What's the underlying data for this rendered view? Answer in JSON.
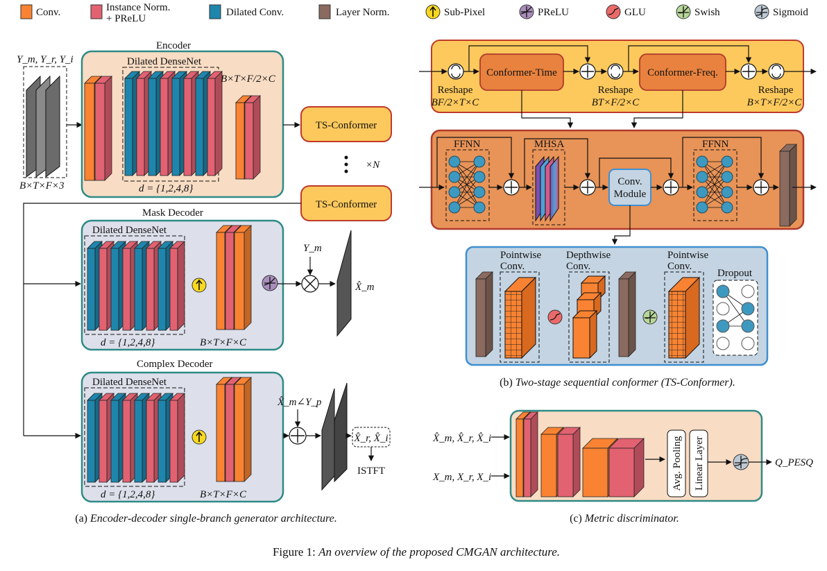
{
  "legend": [
    {
      "name": "conv",
      "label": "Conv.",
      "color": "#f98332"
    },
    {
      "name": "instance-norm-prelu",
      "label_lines": [
        "Instance Norm.",
        "+ PReLU"
      ],
      "color": "#e26272"
    },
    {
      "name": "dilated-conv",
      "label": "Dilated Conv.",
      "color": "#1e86ad"
    },
    {
      "name": "layer-norm",
      "label": "Layer Norm.",
      "color": "#8b6a5f"
    },
    {
      "name": "sub-pixel",
      "label": "Sub-Pixel",
      "color": "#f8d81e",
      "icon": "up-arrow-icon"
    },
    {
      "name": "prelu",
      "label": "PReLU",
      "color": "#a98ebc",
      "icon": "prelu-curve-icon"
    },
    {
      "name": "glu",
      "label": "GLU",
      "color": "#ea6a6a",
      "icon": "glu-curve-icon"
    },
    {
      "name": "swish",
      "label": "Swish",
      "color": "#b8d79a",
      "icon": "swish-curve-icon"
    },
    {
      "name": "sigmoid",
      "label": "Sigmoid",
      "color": "#bcc9d4",
      "icon": "sigmoid-curve-icon"
    }
  ],
  "colors": {
    "encoder_bg": "#f8dcc4",
    "decoder_bg": "#dde0ea",
    "teal_border": "#2e8a86",
    "conformer_fill": "#fdc95c",
    "conformer_border": "#c0392b",
    "inner_block": "#e8823e",
    "block_bg": "#e89357",
    "conv_module_bg": "#c4d4e2",
    "conv_module_border": "#3f8fd0"
  },
  "panel_a": {
    "input_label": "Y_m, Y_r, Y_i",
    "input_dims": "B×T×F×3",
    "encoder": {
      "title": "Encoder",
      "densenet_label": "Dilated DenseNet",
      "dilation": "d = {1,2,4,8}",
      "output_dims": "B×T×F/2×C"
    },
    "ts_conformer_label": "TS-Conformer",
    "repeat_label": "×N",
    "mask_decoder": {
      "title": "Mask Decoder",
      "densenet_label": "Dilated DenseNet",
      "dilation": "d = {1,2,4,8}",
      "dims": "B×T×F×C",
      "mul_input": "Y_m",
      "output": "X̂_m"
    },
    "complex_decoder": {
      "title": "Complex Decoder",
      "densenet_label": "Dilated DenseNet",
      "dilation": "d = {1,2,4,8}",
      "dims": "B×T×F×C",
      "add_input": "X̂_m∠Y_p",
      "output": "X̂_r, X̂_i",
      "istft": "ISTFT"
    },
    "caption_prefix": "(a) ",
    "caption": "Encoder-decoder single-branch generator architecture."
  },
  "panel_b": {
    "conformer_time": "Conformer-Time",
    "conformer_freq": "Conformer-Freq.",
    "reshape_label": "Reshape",
    "reshape1_dims": "BF/2×T×C",
    "reshape2_dims": "BT×F/2×C",
    "reshape3_dims": "B×T×F/2×C",
    "ffnn_label": "FFNN",
    "mhsa_label": "MHSA",
    "conv_module_label": [
      "Conv.",
      "Module"
    ],
    "pointwise_label": [
      "Pointwise",
      "Conv."
    ],
    "depthwise_label": [
      "Depthwise",
      "Conv."
    ],
    "dropout_label": "Dropout",
    "caption_prefix": "(b) ",
    "caption": "Two-stage sequential conformer (TS-Conformer)."
  },
  "panel_c": {
    "input1": "X̂_m, X̂_r, X̂_i",
    "input2": "X_m, X_r, X_i",
    "avg_pooling": "Avg. Pooling",
    "linear_layer": "Linear Layer",
    "output": "Q_PESQ",
    "caption_prefix": "(c) ",
    "caption": "Metric discriminator."
  },
  "figure_caption_prefix": "Figure 1: ",
  "figure_caption": "An overview of the proposed CMGAN architecture."
}
